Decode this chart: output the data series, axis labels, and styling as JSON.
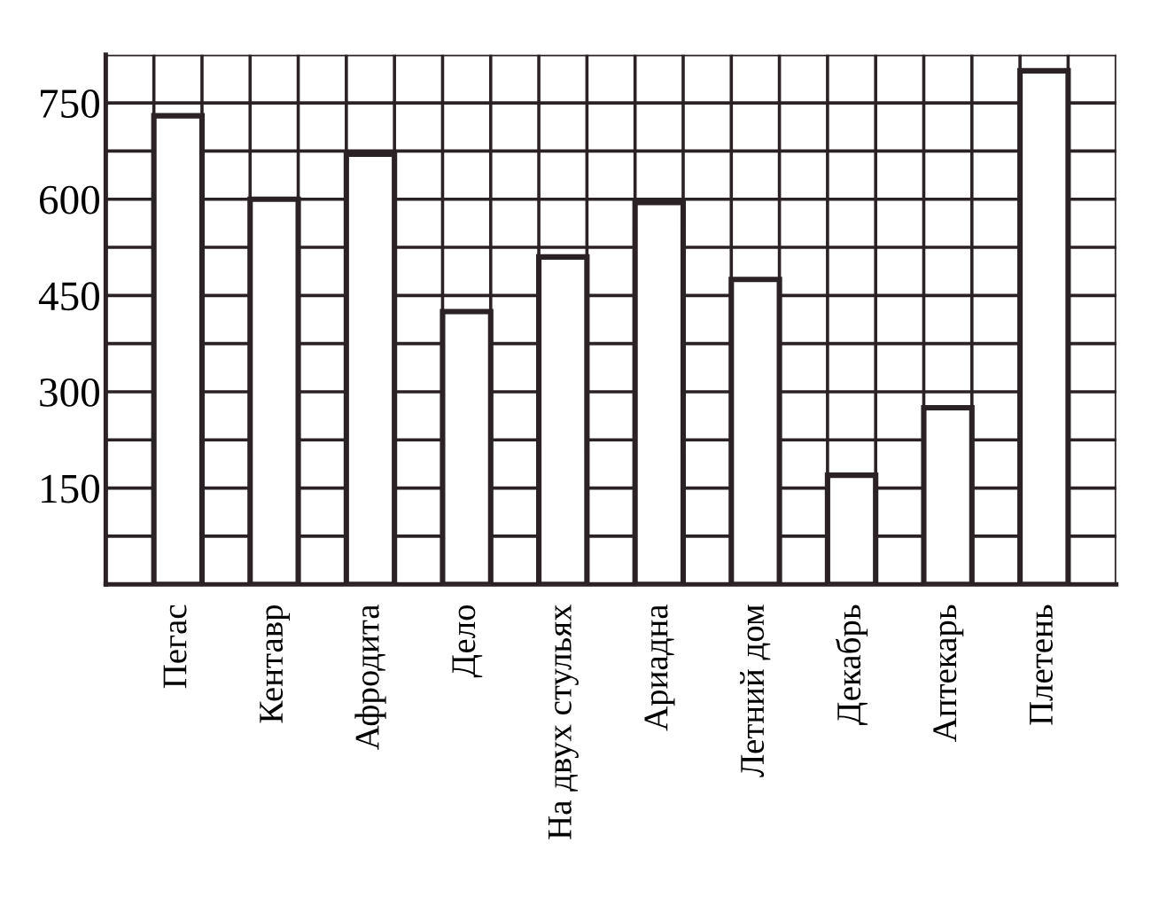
{
  "chart_data": {
    "type": "bar",
    "categories": [
      "Пегас",
      "Кентавр",
      "Афродита",
      "Дело",
      "На двух стульях",
      "Ариадна",
      "Летний дом",
      "Декабрь",
      "Аптекарь",
      "Плетень"
    ],
    "values": [
      730,
      600,
      670,
      425,
      510,
      595,
      475,
      170,
      275,
      800
    ],
    "color": "#ffffff",
    "ylim": [
      0,
      825
    ],
    "yticks": [
      {
        "value": 75,
        "label": null
      },
      150,
      {
        "value": 225,
        "label": null
      },
      300,
      {
        "value": 375,
        "label": null
      },
      450,
      {
        "value": 525,
        "label": null
      },
      600,
      {
        "value": 675,
        "label": null
      },
      750,
      {
        "value": 825,
        "label": null
      }
    ],
    "grid": true
  }
}
